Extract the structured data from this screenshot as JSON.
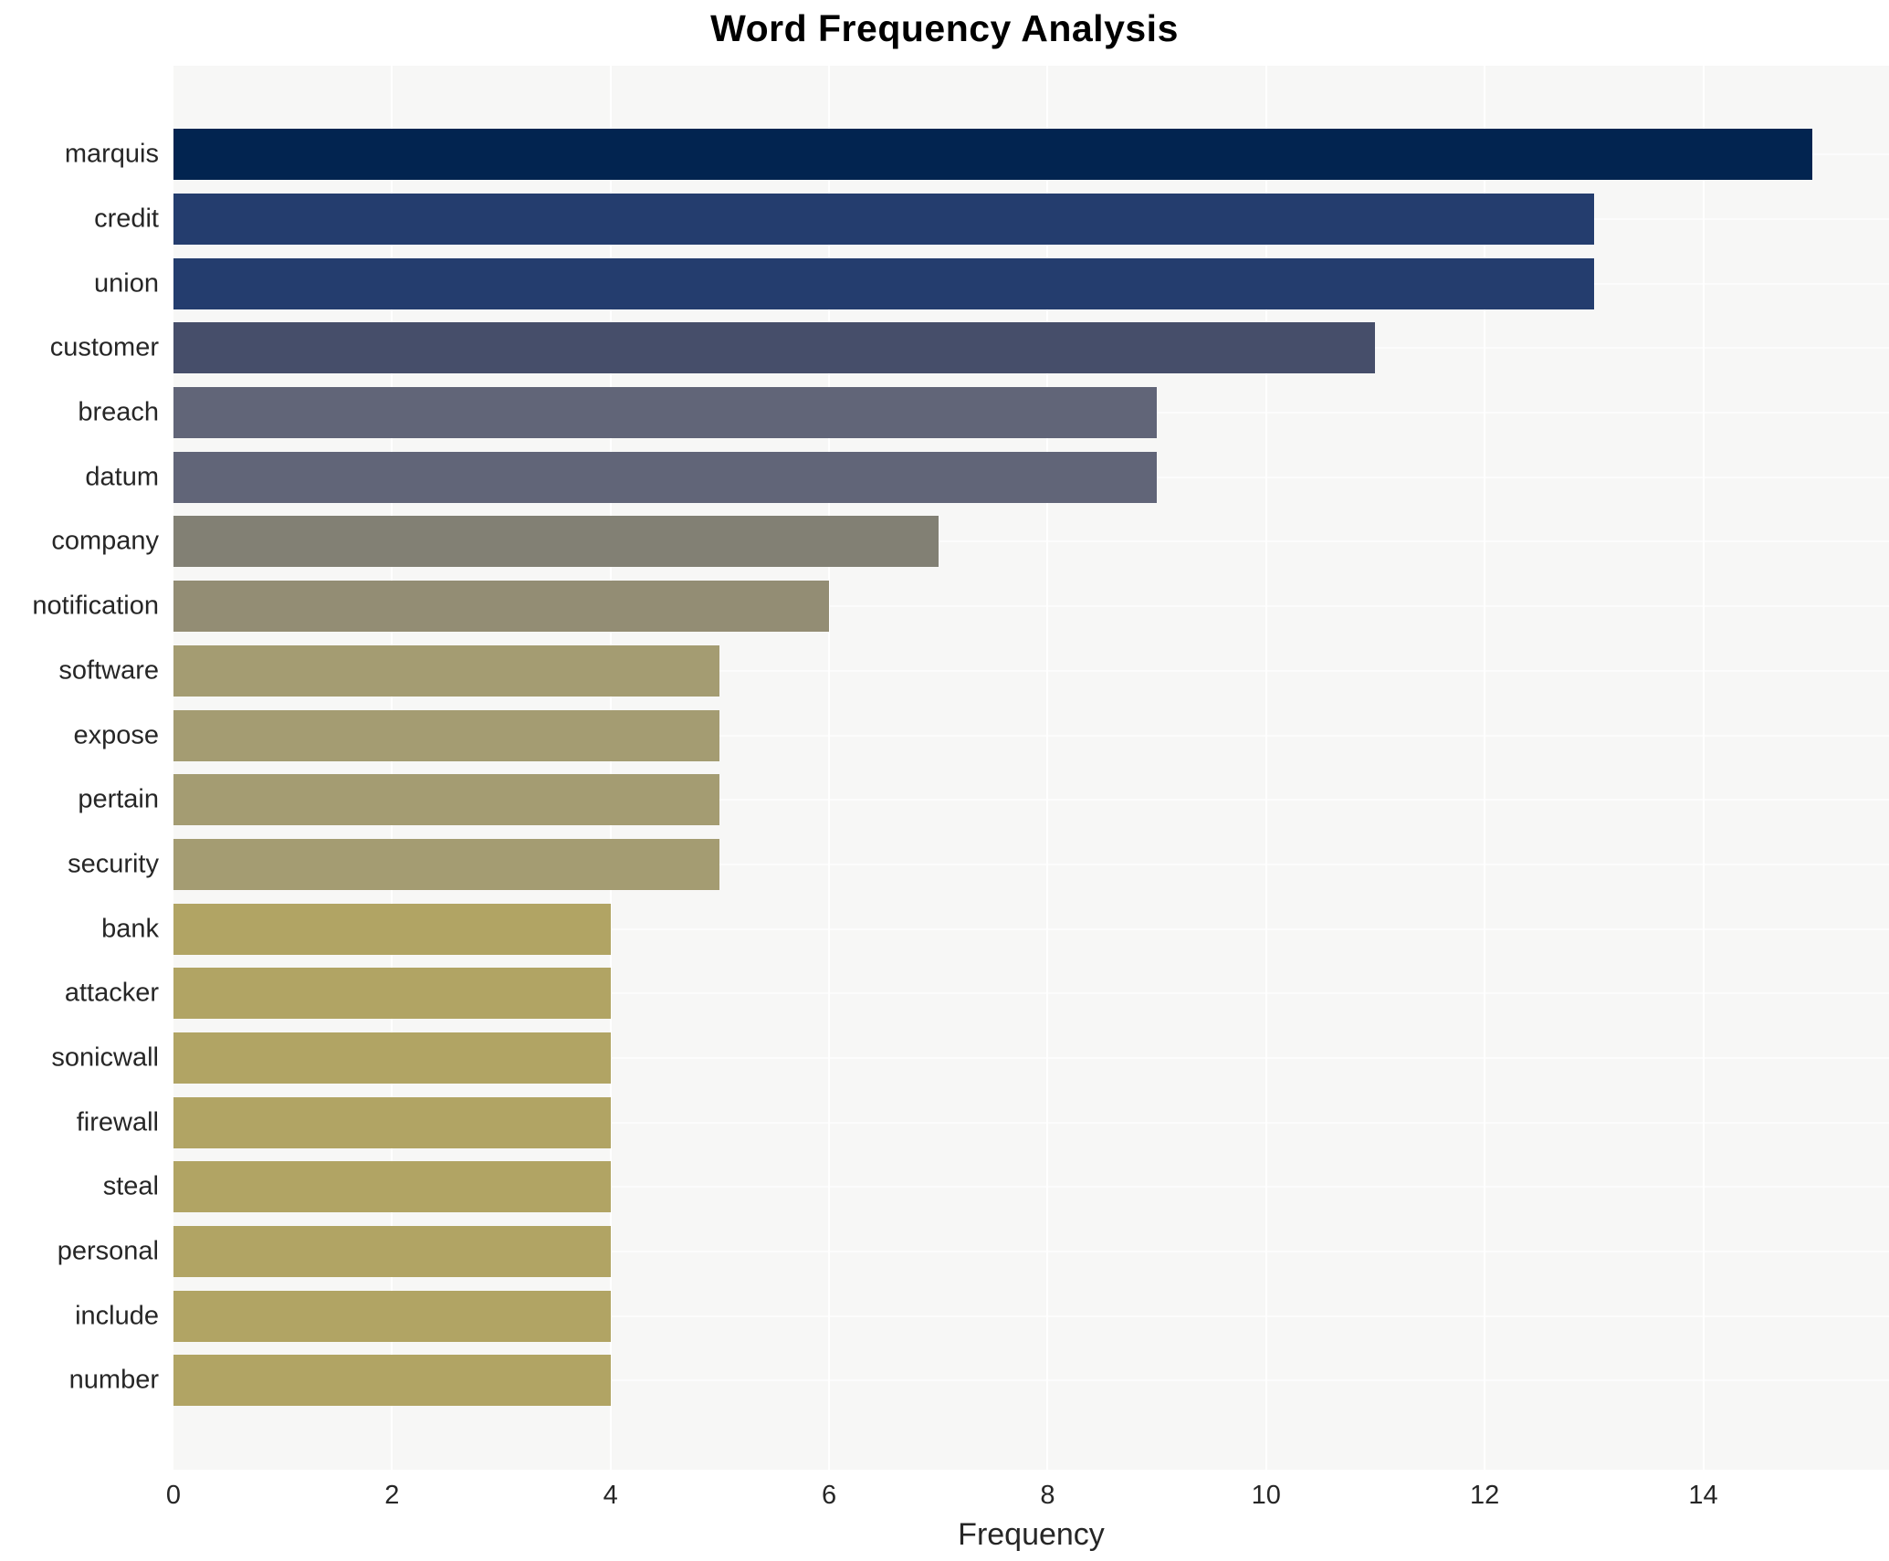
{
  "chart_data": {
    "type": "bar",
    "orientation": "horizontal",
    "title": "Word Frequency Analysis",
    "xlabel": "Frequency",
    "ylabel": "",
    "categories": [
      "marquis",
      "credit",
      "union",
      "customer",
      "breach",
      "datum",
      "company",
      "notification",
      "software",
      "expose",
      "pertain",
      "security",
      "bank",
      "attacker",
      "sonicwall",
      "firewall",
      "steal",
      "personal",
      "include",
      "number"
    ],
    "values": [
      15,
      13,
      13,
      11,
      9,
      9,
      7,
      6,
      5,
      5,
      5,
      5,
      4,
      4,
      4,
      4,
      4,
      4,
      4,
      4
    ],
    "bar_colors": [
      "#022450",
      "#243d6e",
      "#243d6e",
      "#464e6a",
      "#616578",
      "#616578",
      "#828074",
      "#938d74",
      "#a49c72",
      "#a49c72",
      "#a49c72",
      "#a49c72",
      "#b1a464",
      "#b1a464",
      "#b1a464",
      "#b1a464",
      "#b1a464",
      "#b1a464",
      "#b1a464",
      "#b1a464"
    ],
    "xlim": [
      0,
      15.7
    ],
    "xticks": [
      0,
      2,
      4,
      6,
      8,
      10,
      12,
      14
    ],
    "grid": true,
    "legend": "none",
    "plot_bg": "#f7f7f6",
    "text_color": "#262626"
  }
}
